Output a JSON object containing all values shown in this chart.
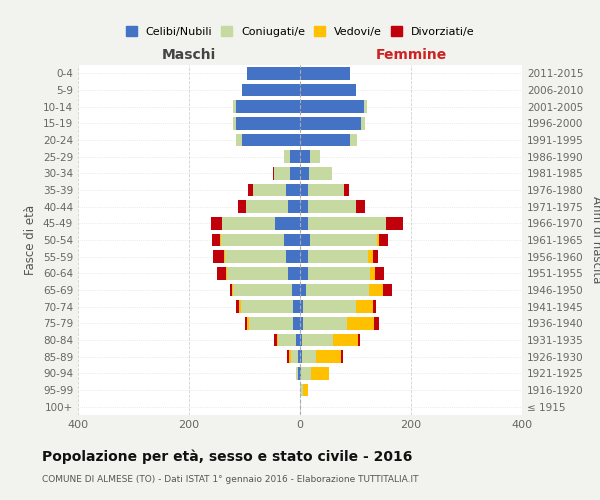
{
  "age_groups": [
    "100+",
    "95-99",
    "90-94",
    "85-89",
    "80-84",
    "75-79",
    "70-74",
    "65-69",
    "60-64",
    "55-59",
    "50-54",
    "45-49",
    "40-44",
    "35-39",
    "30-34",
    "25-29",
    "20-24",
    "15-19",
    "10-14",
    "5-9",
    "0-4"
  ],
  "birth_years": [
    "≤ 1915",
    "1916-1920",
    "1921-1925",
    "1926-1930",
    "1931-1935",
    "1936-1940",
    "1941-1945",
    "1946-1950",
    "1951-1955",
    "1956-1960",
    "1961-1965",
    "1966-1970",
    "1971-1975",
    "1976-1980",
    "1981-1985",
    "1986-1990",
    "1991-1995",
    "1996-2000",
    "2001-2005",
    "2006-2010",
    "2011-2015"
  ],
  "maschi_celibi": [
    0,
    0,
    3,
    4,
    7,
    12,
    12,
    15,
    22,
    25,
    28,
    45,
    22,
    25,
    18,
    18,
    105,
    115,
    115,
    105,
    95
  ],
  "maschi_coniugati": [
    0,
    0,
    5,
    12,
    32,
    80,
    95,
    105,
    110,
    110,
    115,
    95,
    75,
    60,
    28,
    10,
    10,
    5,
    5,
    0,
    0
  ],
  "maschi_vedovi": [
    0,
    0,
    0,
    3,
    2,
    3,
    3,
    2,
    2,
    2,
    2,
    0,
    0,
    0,
    0,
    0,
    0,
    0,
    0,
    0,
    0
  ],
  "maschi_divorziati": [
    0,
    0,
    0,
    4,
    5,
    5,
    5,
    5,
    15,
    20,
    13,
    20,
    15,
    8,
    2,
    0,
    0,
    0,
    0,
    0,
    0
  ],
  "femmine_nubili": [
    0,
    0,
    2,
    3,
    4,
    5,
    5,
    10,
    14,
    15,
    18,
    15,
    15,
    15,
    16,
    18,
    90,
    110,
    115,
    100,
    90
  ],
  "femmine_coniugate": [
    0,
    5,
    18,
    25,
    55,
    80,
    95,
    115,
    112,
    108,
    120,
    140,
    85,
    65,
    42,
    18,
    12,
    8,
    5,
    0,
    0
  ],
  "femmine_vedove": [
    0,
    10,
    32,
    45,
    45,
    48,
    32,
    25,
    10,
    8,
    5,
    0,
    0,
    0,
    0,
    0,
    0,
    0,
    0,
    0,
    0
  ],
  "femmine_divorziate": [
    0,
    0,
    0,
    5,
    5,
    10,
    5,
    15,
    15,
    10,
    15,
    30,
    18,
    8,
    0,
    0,
    0,
    0,
    0,
    0,
    0
  ],
  "color_celibi": "#4472c4",
  "color_coniugati": "#c5d9a0",
  "color_vedovi": "#ffc000",
  "color_divorziati": "#c0000b",
  "xlim": 400,
  "xticks": [
    -400,
    -200,
    0,
    200,
    400
  ],
  "title": "Popolazione per età, sesso e stato civile - 2016",
  "subtitle": "COMUNE DI ALMESE (TO) - Dati ISTAT 1° gennaio 2016 - Elaborazione TUTTITALIA.IT",
  "label_maschi": "Maschi",
  "label_femmine": "Femmine",
  "ylabel_left": "Fasce di età",
  "ylabel_right": "Anni di nascita",
  "legend_labels": [
    "Celibi/Nubili",
    "Coniugati/e",
    "Vedovi/e",
    "Divorziati/e"
  ],
  "bg_color": "#f2f2ee",
  "plot_bg": "#ffffff"
}
